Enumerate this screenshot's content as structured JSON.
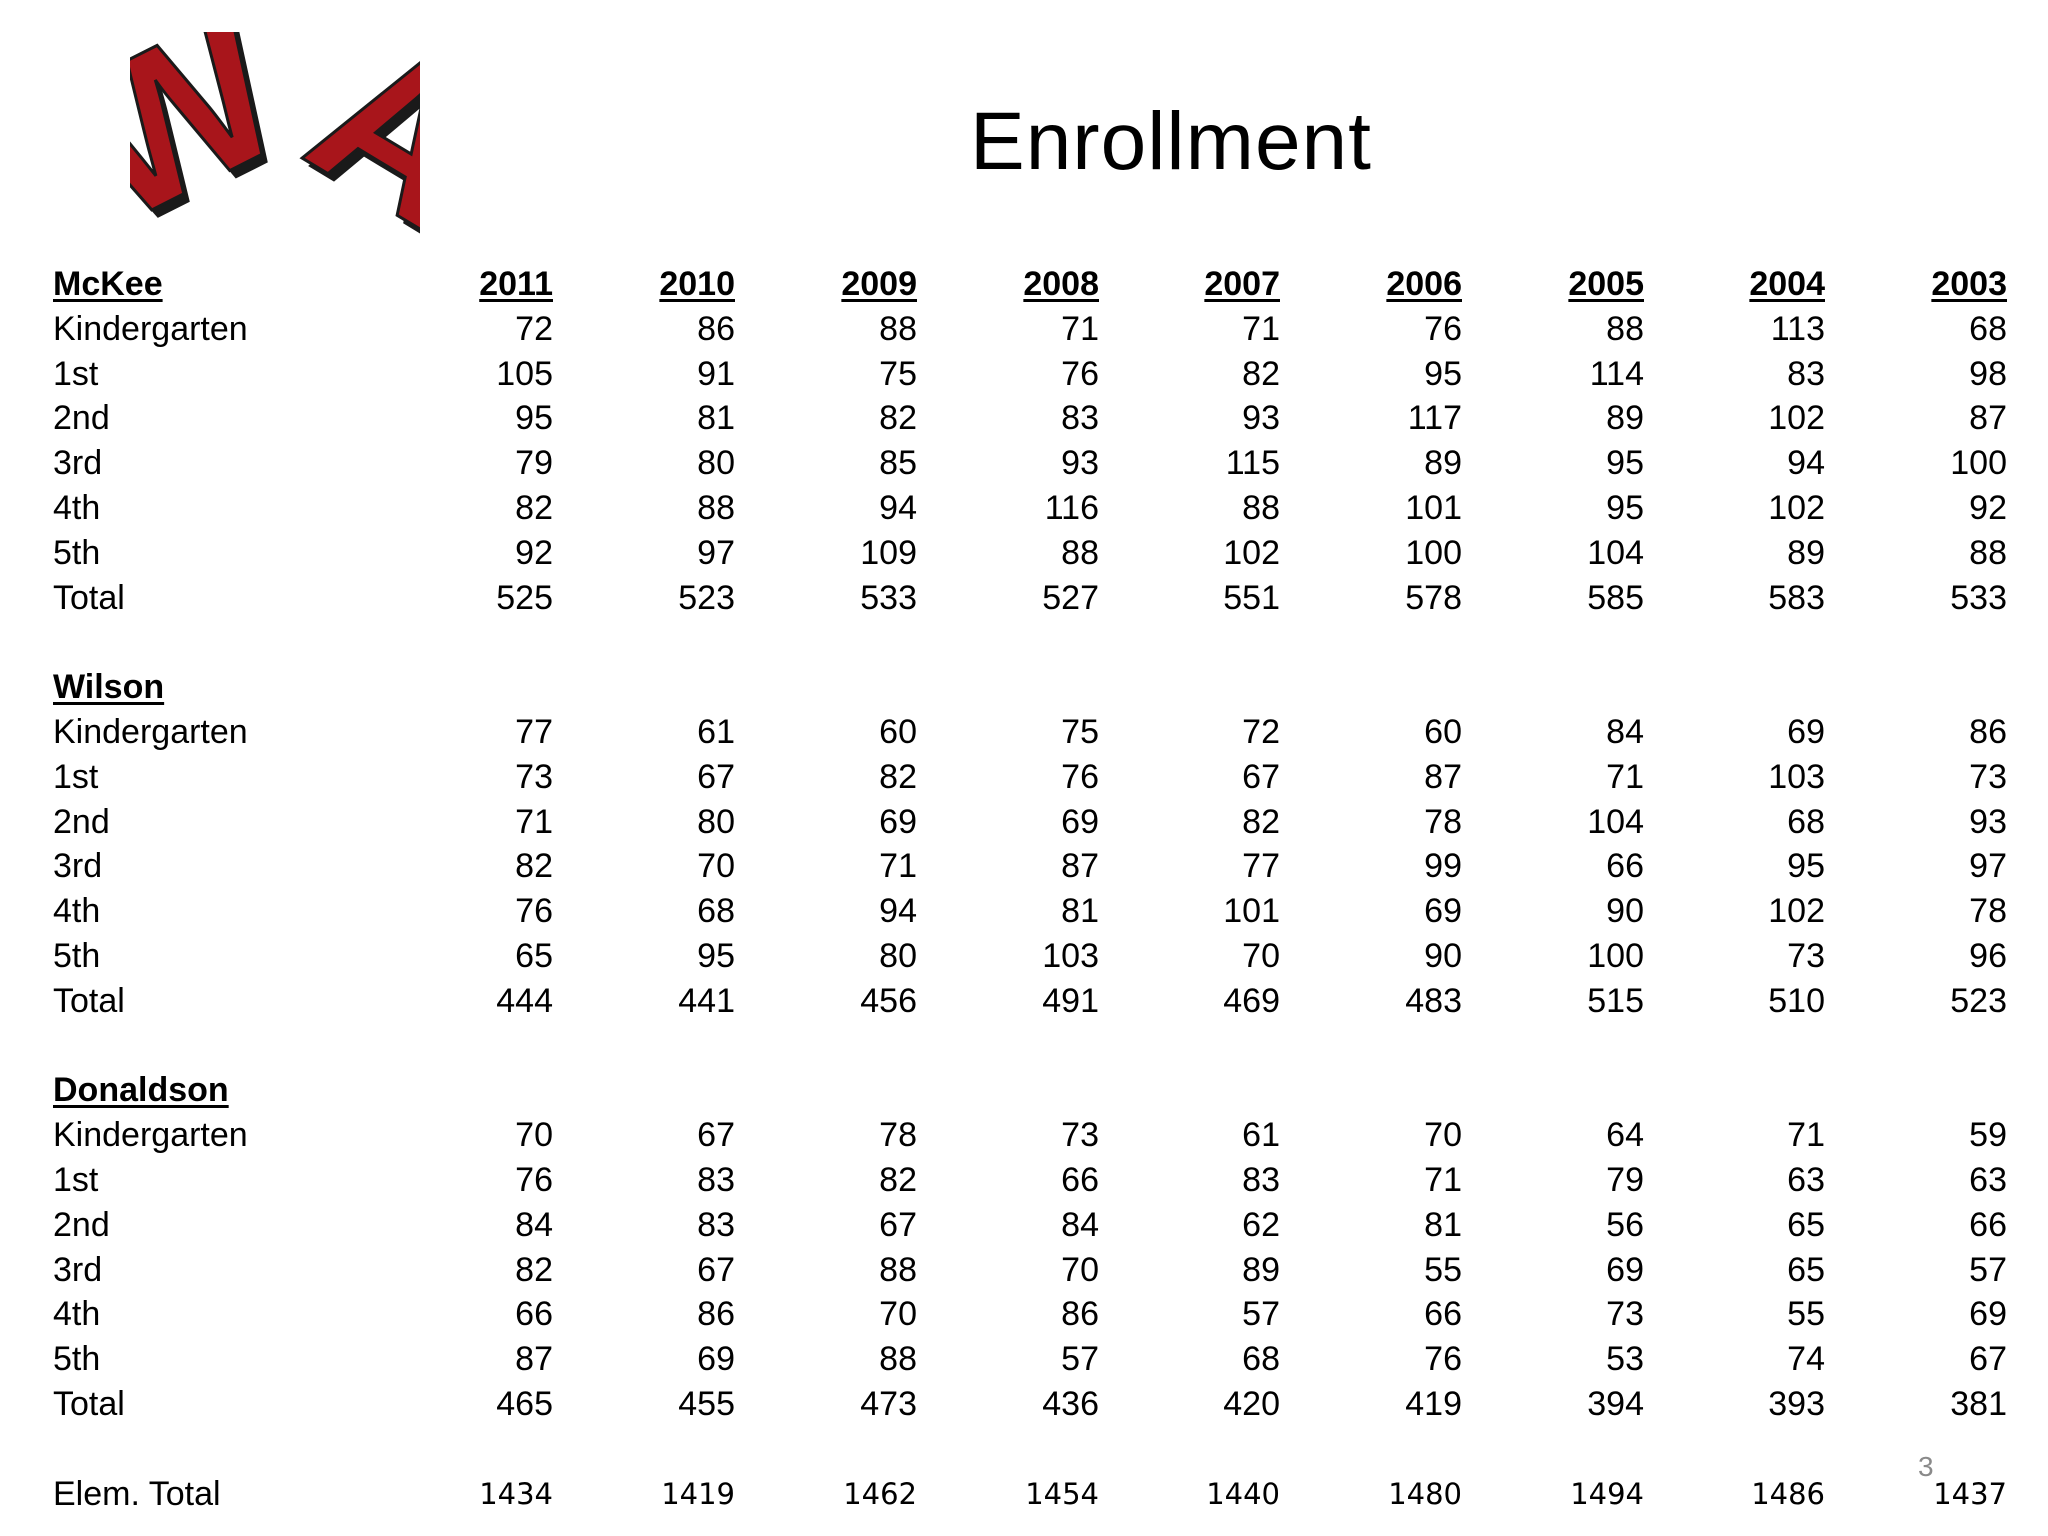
{
  "title": "Enrollment",
  "logo": {
    "text": "WA",
    "fill": "#a8151b",
    "shadow": "#1a1a1a"
  },
  "slide_number": "3",
  "table": {
    "years": [
      "2011",
      "2010",
      "2009",
      "2008",
      "2007",
      "2006",
      "2005",
      "2004",
      "2003"
    ],
    "sections": [
      {
        "name": "McKee",
        "rows": [
          {
            "label": "Kindergarten",
            "values": [
              "72",
              "86",
              "88",
              "71",
              "71",
              "76",
              "88",
              "113",
              "68"
            ]
          },
          {
            "label": "1st",
            "values": [
              "105",
              "91",
              "75",
              "76",
              "82",
              "95",
              "114",
              "83",
              "98"
            ]
          },
          {
            "label": "2nd",
            "values": [
              "95",
              "81",
              "82",
              "83",
              "93",
              "117",
              "89",
              "102",
              "87"
            ]
          },
          {
            "label": "3rd",
            "values": [
              "79",
              "80",
              "85",
              "93",
              "115",
              "89",
              "95",
              "94",
              "100"
            ]
          },
          {
            "label": "4th",
            "values": [
              "82",
              "88",
              "94",
              "116",
              "88",
              "101",
              "95",
              "102",
              "92"
            ]
          },
          {
            "label": "5th",
            "values": [
              "92",
              "97",
              "109",
              "88",
              "102",
              "100",
              "104",
              "89",
              "88"
            ]
          },
          {
            "label": "Total",
            "values": [
              "525",
              "523",
              "533",
              "527",
              "551",
              "578",
              "585",
              "583",
              "533"
            ]
          }
        ]
      },
      {
        "name": "Wilson",
        "rows": [
          {
            "label": "Kindergarten",
            "values": [
              "77",
              "61",
              "60",
              "75",
              "72",
              "60",
              "84",
              "69",
              "86"
            ]
          },
          {
            "label": "1st",
            "values": [
              "73",
              "67",
              "82",
              "76",
              "67",
              "87",
              "71",
              "103",
              "73"
            ]
          },
          {
            "label": "2nd",
            "values": [
              "71",
              "80",
              "69",
              "69",
              "82",
              "78",
              "104",
              "68",
              "93"
            ]
          },
          {
            "label": "3rd",
            "values": [
              "82",
              "70",
              "71",
              "87",
              "77",
              "99",
              "66",
              "95",
              "97"
            ]
          },
          {
            "label": "4th",
            "values": [
              "76",
              "68",
              "94",
              "81",
              "101",
              "69",
              "90",
              "102",
              "78"
            ]
          },
          {
            "label": "5th",
            "values": [
              "65",
              "95",
              "80",
              "103",
              "70",
              "90",
              "100",
              "73",
              "96"
            ]
          },
          {
            "label": "Total",
            "values": [
              "444",
              "441",
              "456",
              "491",
              "469",
              "483",
              "515",
              "510",
              "523"
            ]
          }
        ]
      },
      {
        "name": "Donaldson",
        "rows": [
          {
            "label": "Kindergarten",
            "values": [
              "70",
              "67",
              "78",
              "73",
              "61",
              "70",
              "64",
              "71",
              "59"
            ]
          },
          {
            "label": "1st",
            "values": [
              "76",
              "83",
              "82",
              "66",
              "83",
              "71",
              "79",
              "63",
              "63"
            ]
          },
          {
            "label": "2nd",
            "values": [
              "84",
              "83",
              "67",
              "84",
              "62",
              "81",
              "56",
              "65",
              "66"
            ]
          },
          {
            "label": "3rd",
            "values": [
              "82",
              "67",
              "88",
              "70",
              "89",
              "55",
              "69",
              "65",
              "57"
            ]
          },
          {
            "label": "4th",
            "values": [
              "66",
              "86",
              "70",
              "86",
              "57",
              "66",
              "73",
              "55",
              "69"
            ]
          },
          {
            "label": "5th",
            "values": [
              "87",
              "69",
              "88",
              "57",
              "68",
              "76",
              "53",
              "74",
              "67"
            ]
          },
          {
            "label": "Total",
            "values": [
              "465",
              "455",
              "473",
              "436",
              "420",
              "419",
              "394",
              "393",
              "381"
            ]
          }
        ]
      }
    ],
    "grand_total": {
      "label": "Elem. Total",
      "values": [
        "1434",
        "1419",
        "1462",
        "1454",
        "1440",
        "1480",
        "1494",
        "1486",
        "1437"
      ]
    }
  }
}
